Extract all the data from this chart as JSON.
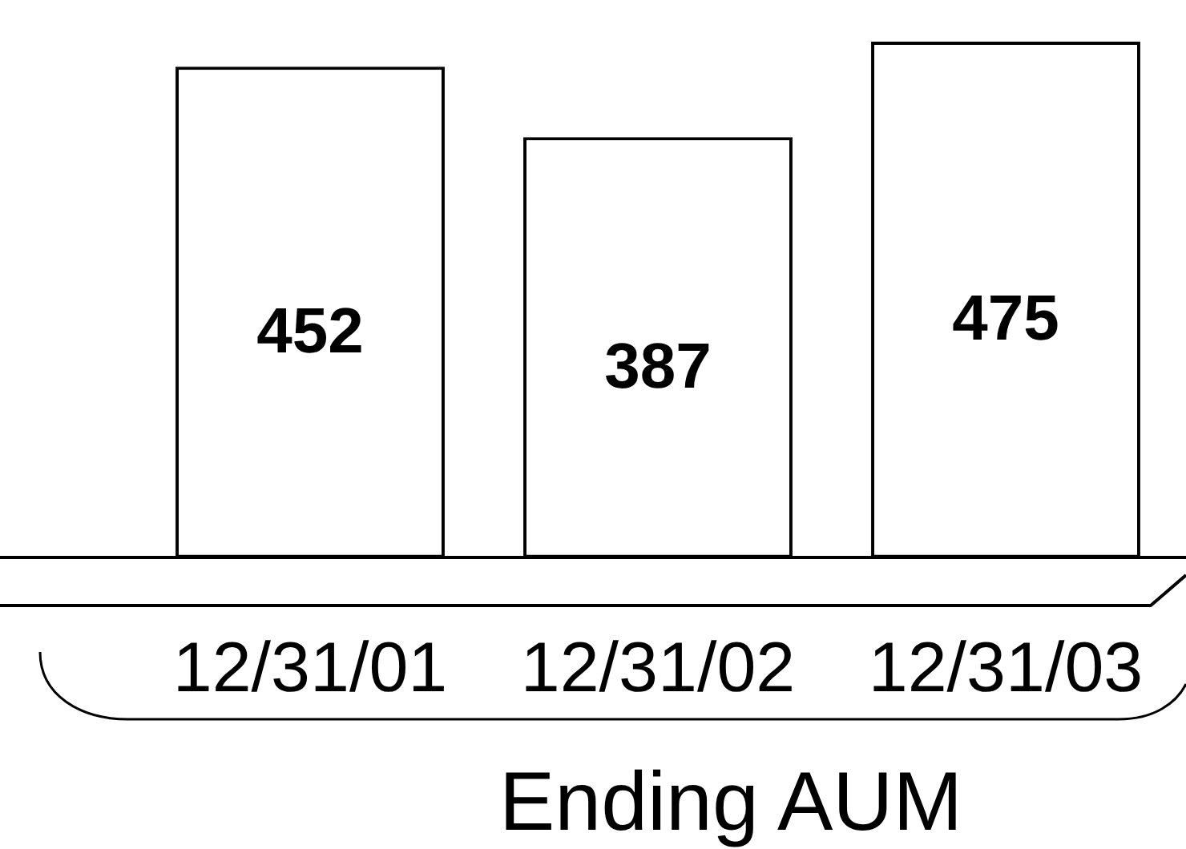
{
  "chart_data": {
    "type": "bar",
    "categories": [
      "12/31/01",
      "12/31/02",
      "12/31/03"
    ],
    "values": [
      452,
      387,
      475
    ],
    "color": "#ffffff",
    "xlabel": "Ending AUM",
    "data_labels": true
  }
}
